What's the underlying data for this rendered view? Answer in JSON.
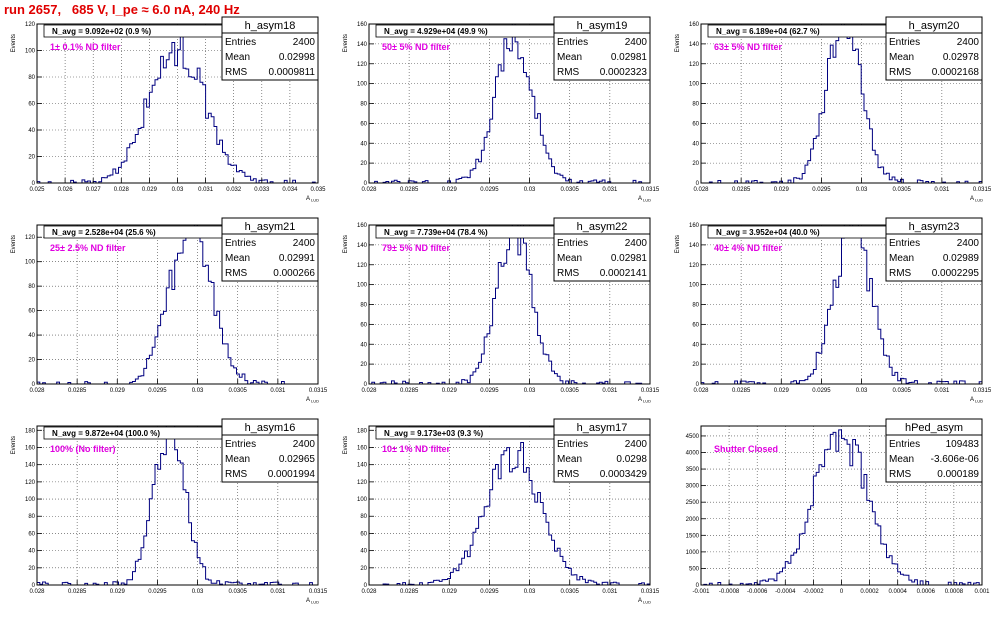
{
  "page_title": "run 2657,   685 V, I_pe ≈ 6.0 nA, 240 Hz",
  "colors": {
    "title": "#e00000",
    "histogram": "#000080",
    "annotation": "#e000e0",
    "grid": "#444444"
  },
  "stats_labels": {
    "entries": "Entries",
    "mean": "Mean",
    "rms": "RMS"
  },
  "chart_data": [
    {
      "type": "histogram",
      "name": "h_asym18",
      "stats": {
        "entries": "2400",
        "mean": "0.02998",
        "rms": "0.0009811"
      },
      "navg": "N_avg = 9.092e+02 (0.9 %)",
      "filter": "1± 0.1% ND filter",
      "ylabel": "Events",
      "xlabel": "A",
      "xlabel_sub": "LUD",
      "xlim": [
        0.025,
        0.035
      ],
      "ylim": [
        0,
        120
      ],
      "xticks": [
        "0.025",
        "0.026",
        "0.027",
        "0.028",
        "0.029",
        "0.03",
        "0.031",
        "0.032",
        "0.033",
        "0.034",
        "0.035"
      ],
      "yticks": [
        "0",
        "20",
        "40",
        "60",
        "80",
        "100",
        "120"
      ],
      "mean": 0.02998,
      "rms": 0.0009811,
      "peak": 105,
      "grid": true
    },
    {
      "type": "histogram",
      "name": "h_asym19",
      "stats": {
        "entries": "2400",
        "mean": "0.02981",
        "rms": "0.0002323"
      },
      "navg": "N_avg = 4.929e+04 (49.9 %)",
      "filter": "50± 5% ND filter",
      "ylabel": "Events",
      "xlabel": "A",
      "xlabel_sub": "LUD",
      "xlim": [
        0.028,
        0.0315
      ],
      "ylim": [
        0,
        160
      ],
      "xticks": [
        "0.028",
        "0.0285",
        "0.029",
        "0.0295",
        "0.03",
        "0.0305",
        "0.031",
        "0.0315"
      ],
      "yticks": [
        "0",
        "20",
        "40",
        "60",
        "80",
        "100",
        "120",
        "140",
        "160"
      ],
      "mean": 0.02981,
      "rms": 0.0002323,
      "peak": 150,
      "grid": true
    },
    {
      "type": "histogram",
      "name": "h_asym20",
      "stats": {
        "entries": "2400",
        "mean": "0.02978",
        "rms": "0.0002168"
      },
      "navg": "N_avg = 6.189e+04 (62.7 %)",
      "filter": "63± 5% ND filter",
      "ylabel": "Events",
      "xlabel": "A",
      "xlabel_sub": "LUD",
      "xlim": [
        0.028,
        0.0315
      ],
      "ylim": [
        0,
        160
      ],
      "xticks": [
        "0.028",
        "0.0285",
        "0.029",
        "0.0295",
        "0.03",
        "0.0305",
        "0.031",
        "0.0315"
      ],
      "yticks": [
        "0",
        "20",
        "40",
        "60",
        "80",
        "100",
        "120",
        "140",
        "160"
      ],
      "mean": 0.02978,
      "rms": 0.0002168,
      "peak": 160,
      "grid": true
    },
    {
      "type": "histogram",
      "name": "h_asym21",
      "stats": {
        "entries": "2400",
        "mean": "0.02991",
        "rms": "0.000266"
      },
      "navg": "N_avg = 2.528e+04 (25.6 %)",
      "filter": "25± 2.5% ND filter",
      "ylabel": "Events",
      "xlabel": "A",
      "xlabel_sub": "LUD",
      "xlim": [
        0.028,
        0.0315
      ],
      "ylim": [
        0,
        130
      ],
      "xticks": [
        "0.028",
        "0.0285",
        "0.029",
        "0.0295",
        "0.03",
        "0.0305",
        "0.031",
        "0.0315"
      ],
      "yticks": [
        "0",
        "20",
        "40",
        "60",
        "80",
        "100",
        "120"
      ],
      "mean": 0.02991,
      "rms": 0.000266,
      "peak": 125,
      "grid": true
    },
    {
      "type": "histogram",
      "name": "h_asym22",
      "stats": {
        "entries": "2400",
        "mean": "0.02981",
        "rms": "0.0002141"
      },
      "navg": "N_avg = 7.739e+04 (78.4 %)",
      "filter": "79± 5% ND filter",
      "ylabel": "Events",
      "xlabel": "A",
      "xlabel_sub": "LUD",
      "xlim": [
        0.028,
        0.0315
      ],
      "ylim": [
        0,
        160
      ],
      "xticks": [
        "0.028",
        "0.0285",
        "0.029",
        "0.0295",
        "0.03",
        "0.0305",
        "0.031",
        "0.0315"
      ],
      "yticks": [
        "0",
        "20",
        "40",
        "60",
        "80",
        "100",
        "120",
        "140",
        "160"
      ],
      "mean": 0.02981,
      "rms": 0.0002141,
      "peak": 160,
      "grid": true
    },
    {
      "type": "histogram",
      "name": "h_asym23",
      "stats": {
        "entries": "2400",
        "mean": "0.02989",
        "rms": "0.0002295"
      },
      "navg": "N_avg = 3.952e+04 (40.0 %)",
      "filter": "40± 4% ND filter",
      "ylabel": "Events",
      "xlabel": "A",
      "xlabel_sub": "LUD",
      "xlim": [
        0.028,
        0.0315
      ],
      "ylim": [
        0,
        160
      ],
      "xticks": [
        "0.028",
        "0.0285",
        "0.029",
        "0.0295",
        "0.03",
        "0.0305",
        "0.031",
        "0.0315"
      ],
      "yticks": [
        "0",
        "20",
        "40",
        "60",
        "80",
        "100",
        "120",
        "140",
        "160"
      ],
      "mean": 0.02989,
      "rms": 0.0002295,
      "peak": 155,
      "grid": true
    },
    {
      "type": "histogram",
      "name": "h_asym16",
      "stats": {
        "entries": "2400",
        "mean": "0.02965",
        "rms": "0.0001994"
      },
      "navg": "N_avg = 9.872e+04 (100.0 %)",
      "filter": "100% (No filter)",
      "ylabel": "Events",
      "xlabel": "A",
      "xlabel_sub": "LUD",
      "xlim": [
        0.028,
        0.0315
      ],
      "ylim": [
        0,
        185
      ],
      "xticks": [
        "0.028",
        "0.0285",
        "0.029",
        "0.0295",
        "0.03",
        "0.0305",
        "0.031",
        "0.0315"
      ],
      "yticks": [
        "0",
        "20",
        "40",
        "60",
        "80",
        "100",
        "120",
        "140",
        "160",
        "180"
      ],
      "mean": 0.02965,
      "rms": 0.0001994,
      "peak": 180,
      "grid": true
    },
    {
      "type": "histogram",
      "name": "h_asym17",
      "stats": {
        "entries": "2400",
        "mean": "0.0298",
        "rms": "0.0003429"
      },
      "navg": "N_avg = 9.173e+03 (9.3 %)",
      "filter": "10± 1% ND filter",
      "ylabel": "Events",
      "xlabel": "A",
      "xlabel_sub": "LUD",
      "xlim": [
        0.028,
        0.0315
      ],
      "ylim": [
        0,
        185
      ],
      "xticks": [
        "0.028",
        "0.0285",
        "0.029",
        "0.0295",
        "0.03",
        "0.0305",
        "0.031",
        "0.0315"
      ],
      "yticks": [
        "0",
        "20",
        "40",
        "60",
        "80",
        "100",
        "120",
        "140",
        "160",
        "180"
      ],
      "mean": 0.0298,
      "rms": 0.0003429,
      "peak": 150,
      "grid": true
    },
    {
      "type": "histogram",
      "name": "hPed_asym",
      "stats": {
        "entries": "109483",
        "mean": "-3.606e-06",
        "rms": "0.000189"
      },
      "navg": "",
      "filter": "Shutter Closed",
      "ylabel": "",
      "xlabel": "",
      "xlabel_sub": "",
      "xlim": [
        -0.001,
        0.001
      ],
      "ylim": [
        0,
        4800
      ],
      "xticks": [
        "-0.001",
        "-0.0008",
        "-0.0006",
        "-0.0004",
        "-0.0002",
        "0",
        "0.0002",
        "0.0004",
        "0.0006",
        "0.0008",
        "0.001"
      ],
      "yticks": [
        "0",
        "500",
        "1000",
        "1500",
        "2000",
        "2500",
        "3000",
        "3500",
        "4000",
        "4500"
      ],
      "mean": -3.606e-06,
      "rms": 0.000189,
      "peak": 4650,
      "grid": true
    }
  ]
}
